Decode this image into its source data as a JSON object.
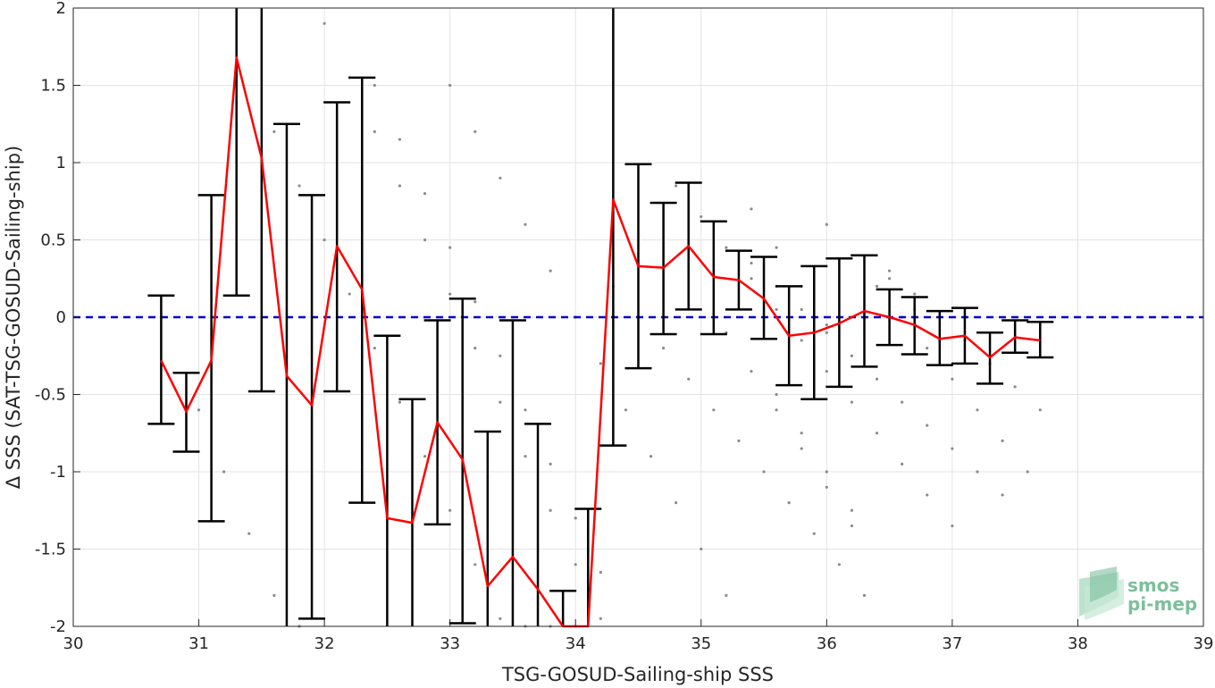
{
  "chart_data": {
    "type": "line",
    "xlabel": "TSG-GOSUD-Sailing-ship SSS",
    "ylabel": "Δ SSS (SAT-TSG-GOSUD-Sailing-ship)",
    "xlim": [
      30,
      39
    ],
    "ylim": [
      -2,
      2
    ],
    "xticks": [
      30,
      31,
      32,
      33,
      34,
      35,
      36,
      37,
      38,
      39
    ],
    "yticks": [
      -2,
      -1.5,
      -1,
      -0.5,
      0,
      0.5,
      1,
      1.5,
      2
    ],
    "grid": true,
    "reference_line": {
      "y": 0,
      "color": "#0000cc",
      "style": "dashed"
    },
    "series": [
      {
        "style": "mean-line-with-errorbars",
        "line_color": "#ff0000",
        "errorbar_color": "#000000",
        "x": [
          30.7,
          30.9,
          31.1,
          31.3,
          31.5,
          31.7,
          31.9,
          32.1,
          32.3,
          32.5,
          32.7,
          32.9,
          33.1,
          33.3,
          33.5,
          33.7,
          33.9,
          34.1,
          34.3,
          34.5,
          34.7,
          34.9,
          35.1,
          35.3,
          35.5,
          35.7,
          35.9,
          36.1,
          36.3,
          36.5,
          36.7,
          36.9,
          37.1,
          37.3,
          37.5,
          37.7
        ],
        "y": [
          -0.28,
          -0.61,
          -0.28,
          1.68,
          1.03,
          -0.38,
          -0.57,
          0.46,
          0.18,
          -1.3,
          -1.33,
          -0.68,
          -0.92,
          -1.74,
          -1.55,
          -1.76,
          -2.0,
          -2.0,
          0.76,
          0.33,
          0.32,
          0.46,
          0.26,
          0.24,
          0.12,
          -0.12,
          -0.1,
          -0.04,
          0.04,
          0.0,
          -0.05,
          -0.14,
          -0.12,
          -0.26,
          -0.13,
          -0.15
        ],
        "err_low": [
          -0.69,
          -0.87,
          -1.32,
          0.14,
          -0.48,
          -2.0,
          -1.95,
          -0.48,
          -1.2,
          -2.0,
          -2.0,
          -1.34,
          -1.98,
          -2.0,
          -2.0,
          -2.0,
          -2.0,
          -2.0,
          -0.83,
          -0.33,
          -0.11,
          0.05,
          -0.11,
          0.05,
          -0.14,
          -0.44,
          -0.53,
          -0.45,
          -0.32,
          -0.18,
          -0.24,
          -0.31,
          -0.3,
          -0.43,
          -0.23,
          -0.26
        ],
        "err_high": [
          0.14,
          -0.36,
          0.79,
          2.0,
          2.0,
          1.25,
          0.79,
          1.39,
          1.55,
          -0.12,
          -0.53,
          -0.02,
          0.12,
          -0.74,
          -0.02,
          -0.69,
          -1.77,
          -1.24,
          2.0,
          0.99,
          0.74,
          0.87,
          0.62,
          0.43,
          0.39,
          0.2,
          0.33,
          0.38,
          0.4,
          0.18,
          0.13,
          0.04,
          0.06,
          -0.1,
          -0.02,
          -0.03
        ]
      },
      {
        "style": "scatter",
        "color": "#8c8c8c",
        "x": [
          31.0,
          31.2,
          31.4,
          31.6,
          31.8,
          32.0,
          32.2,
          32.4,
          32.6,
          32.8,
          33.0,
          33.2,
          33.4,
          33.6,
          33.8,
          34.0,
          34.2,
          31.6,
          31.8,
          32.0,
          32.2,
          32.4,
          32.6,
          32.8,
          33.0,
          33.2,
          33.4,
          33.6,
          33.8,
          34.0,
          32.4,
          32.6,
          32.8,
          33.0,
          33.2,
          33.4,
          33.6,
          33.8,
          34.0,
          34.2,
          33.0,
          33.2,
          33.4,
          33.6,
          33.8,
          34.0,
          34.2,
          34.4,
          34.6,
          34.8,
          35.0,
          35.2,
          35.4,
          35.6,
          35.8,
          36.0,
          34.8,
          35.0,
          35.2,
          35.4,
          35.6,
          35.8,
          36.0,
          36.2,
          36.4,
          36.6,
          36.8,
          37.0,
          35.4,
          35.6,
          35.8,
          36.0,
          36.2,
          36.4,
          36.6,
          36.8,
          37.0,
          37.2,
          37.4,
          36.0,
          36.2,
          36.4,
          36.6,
          36.8,
          37.0,
          37.2,
          37.4,
          37.6,
          36.5,
          36.7,
          36.9,
          37.1,
          37.3,
          37.5,
          37.7,
          35.2,
          35.4,
          35.6,
          35.8,
          36.0,
          36.2,
          35.6,
          35.8,
          36.0,
          36.2,
          34.3,
          34.5,
          34.7,
          34.9,
          35.1,
          35.3,
          35.5,
          35.7,
          35.9,
          36.1,
          36.3,
          36.5,
          36.7,
          36.9
        ],
        "y": [
          -0.6,
          -1.0,
          -1.4,
          -1.8,
          -2.0,
          1.9,
          1.55,
          1.2,
          0.85,
          0.5,
          0.15,
          -0.2,
          -0.55,
          -0.9,
          -1.25,
          -1.6,
          -1.95,
          1.2,
          0.85,
          0.5,
          0.15,
          -0.2,
          -0.55,
          -0.9,
          -1.25,
          -1.6,
          -1.95,
          -2.0,
          -2.0,
          -2.0,
          1.5,
          1.15,
          0.8,
          0.45,
          0.1,
          -0.25,
          -0.6,
          -0.95,
          -1.3,
          -1.65,
          1.5,
          1.2,
          0.9,
          0.6,
          0.3,
          0.0,
          -0.3,
          -0.6,
          -0.9,
          -1.2,
          -1.5,
          -1.8,
          0.7,
          0.45,
          0.2,
          -0.05,
          0.85,
          0.65,
          0.45,
          0.25,
          0.05,
          -0.15,
          -0.35,
          -0.55,
          -0.75,
          -0.95,
          -1.15,
          -1.35,
          0.35,
          0.2,
          0.05,
          -0.1,
          -0.25,
          -0.4,
          -0.55,
          -0.7,
          -0.85,
          -1.0,
          -1.15,
          0.6,
          0.4,
          0.2,
          0.0,
          -0.2,
          -0.4,
          -0.6,
          -0.8,
          -1.0,
          0.3,
          0.15,
          0.0,
          -0.15,
          -0.3,
          -0.45,
          -0.6,
          -0.1,
          -0.35,
          -0.6,
          -0.85,
          -1.1,
          -1.35,
          -0.5,
          -0.75,
          -1.0,
          -1.25,
          0.2,
          0.0,
          -0.2,
          -0.4,
          -0.6,
          -0.8,
          -1.0,
          -1.2,
          -1.4,
          -1.6,
          -1.8,
          0.25,
          0.05,
          -0.15
        ]
      }
    ]
  },
  "watermark": {
    "line1": "smos",
    "line2": "pi-mep",
    "color": "#7dbf9c"
  }
}
